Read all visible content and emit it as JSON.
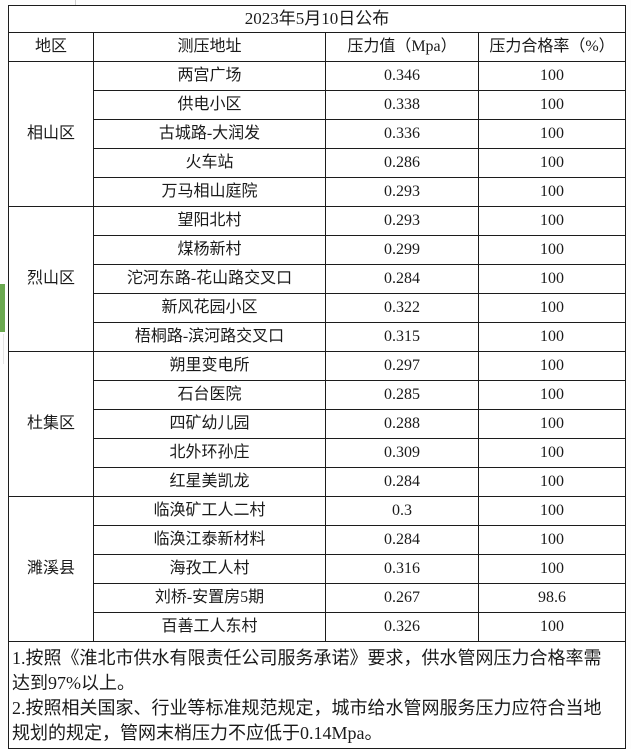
{
  "colors": {
    "selection_green": "#6aa84f",
    "border": "#1c1c1c",
    "background": "#ffffff"
  },
  "table": {
    "title": "2023年5月10日公布",
    "headers": {
      "region": "地区",
      "address": "测压地址",
      "pressure": "压力值（Mpa）",
      "pass_rate": "压力合格率（%）"
    },
    "districts": [
      {
        "name": "相山区",
        "rows": [
          {
            "address": "两宫广场",
            "pressure": "0.346",
            "pass_rate": "100"
          },
          {
            "address": "供电小区",
            "pressure": "0.338",
            "pass_rate": "100"
          },
          {
            "address": "古城路-大润发",
            "pressure": "0.336",
            "pass_rate": "100"
          },
          {
            "address": "火车站",
            "pressure": "0.286",
            "pass_rate": "100"
          },
          {
            "address": "万马相山庭院",
            "pressure": "0.293",
            "pass_rate": "100"
          }
        ]
      },
      {
        "name": "烈山区",
        "rows": [
          {
            "address": "望阳北村",
            "pressure": "0.293",
            "pass_rate": "100"
          },
          {
            "address": "煤杨新村",
            "pressure": "0.299",
            "pass_rate": "100"
          },
          {
            "address": "沱河东路-花山路交叉口",
            "pressure": "0.284",
            "pass_rate": "100"
          },
          {
            "address": "新风花园小区",
            "pressure": "0.322",
            "pass_rate": "100"
          },
          {
            "address": "梧桐路-滨河路交叉口",
            "pressure": "0.315",
            "pass_rate": "100"
          }
        ]
      },
      {
        "name": "杜集区",
        "rows": [
          {
            "address": "朔里变电所",
            "pressure": "0.297",
            "pass_rate": "100"
          },
          {
            "address": "石台医院",
            "pressure": "0.285",
            "pass_rate": "100"
          },
          {
            "address": "四矿幼儿园",
            "pressure": "0.288",
            "pass_rate": "100"
          },
          {
            "address": "北外环孙庄",
            "pressure": "0.309",
            "pass_rate": "100"
          },
          {
            "address": "红星美凯龙",
            "pressure": "0.284",
            "pass_rate": "100"
          }
        ]
      },
      {
        "name": "濉溪县",
        "rows": [
          {
            "address": "临涣矿工人二村",
            "pressure": "0.3",
            "pass_rate": "100"
          },
          {
            "address": "临涣江泰新材料",
            "pressure": "0.284",
            "pass_rate": "100"
          },
          {
            "address": "海孜工人村",
            "pressure": "0.316",
            "pass_rate": "100"
          },
          {
            "address": "刘桥-安置房5期",
            "pressure": "0.267",
            "pass_rate": "98.6"
          },
          {
            "address": "百善工人东村",
            "pressure": "0.326",
            "pass_rate": "100"
          }
        ]
      }
    ],
    "notes": [
      "1.按照《淮北市供水有限责任公司服务承诺》要求，供水管网压力合格率需达到97%以上。",
      "2.按照相关国家、行业等标准规范规定，城市给水管网服务压力应符合当地规划的规定，管网末梢压力不应低于0.14Mpa。"
    ]
  }
}
